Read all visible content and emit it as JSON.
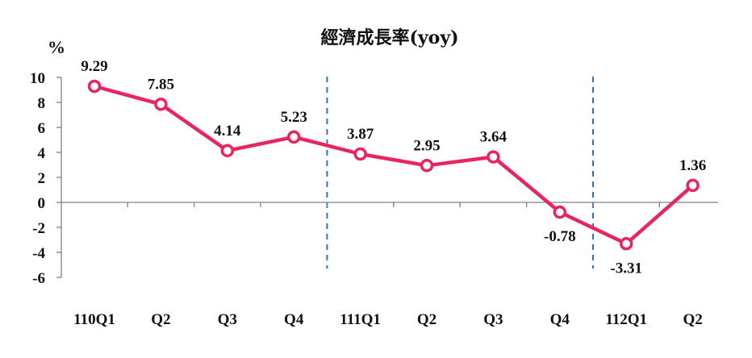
{
  "chart_data": {
    "type": "line",
    "title": "經濟成長率(yoy)",
    "ylabel": "%",
    "xlabel": "",
    "categories": [
      "110Q1",
      "Q2",
      "Q3",
      "Q4",
      "111Q1",
      "Q2",
      "Q3",
      "Q4",
      "112Q1",
      "Q2"
    ],
    "series": [
      {
        "values": [
          9.29,
          7.85,
          4.14,
          5.23,
          3.87,
          2.95,
          3.64,
          -0.78,
          -3.31,
          1.36
        ]
      }
    ],
    "data_labels": [
      "9.29",
      "7.85",
      "4.14",
      "5.23",
      "3.87",
      "2.95",
      "3.64",
      "-0.78",
      "-3.31",
      "1.36"
    ],
    "ylim": [
      -6,
      10
    ],
    "yticks": [
      10,
      8,
      6,
      4,
      2,
      0,
      -2,
      -4,
      -6
    ],
    "ytick_labels": [
      "10",
      "8",
      "6",
      "4",
      "2",
      "0",
      "-2",
      "-4",
      "-6"
    ],
    "year_dividers_after": [
      "Q4",
      "Q4"
    ],
    "grid": false,
    "legend": "none",
    "colors": {
      "line": "#e8265e",
      "marker_fill": "#ffffff",
      "divider": "#2e75b6",
      "axis": "#808080"
    }
  }
}
